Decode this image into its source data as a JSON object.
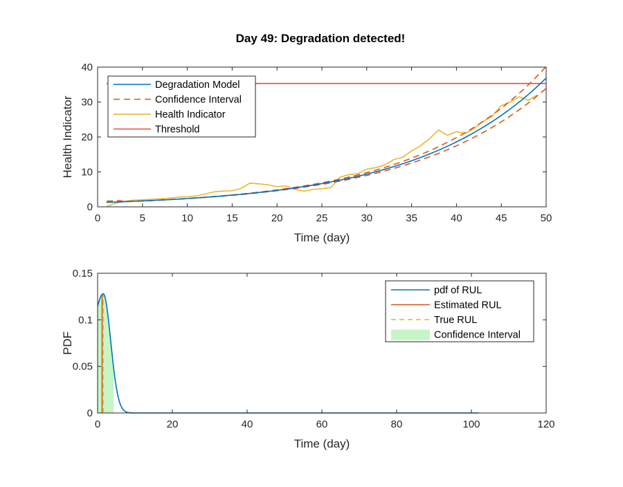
{
  "figure_title": "Day 49: Degradation detected!",
  "colors": {
    "model": "#0072bd",
    "ci": "#d95319",
    "health": "#edb120",
    "threshold": "#e74c3c",
    "pdf_fill": "#c6f5c6"
  },
  "chart_data": [
    {
      "type": "line",
      "title": "Day 49: Degradation detected!",
      "xlabel": "Time (day)",
      "ylabel": "Health Indicator",
      "xlim": [
        0,
        50
      ],
      "ylim": [
        0,
        40
      ],
      "xticks": [
        0,
        5,
        10,
        15,
        20,
        25,
        30,
        35,
        40,
        45,
        50
      ],
      "yticks": [
        0,
        10,
        20,
        30,
        40
      ],
      "legend_position": "top-left",
      "legend": [
        "Degradation Model",
        "Confidence Interval",
        "Health Indicator",
        "Threshold"
      ],
      "threshold": 35.3,
      "health_indicator": {
        "x": [
          1,
          2,
          3,
          4,
          5,
          6,
          7,
          8,
          9,
          10,
          11,
          12,
          13,
          14,
          15,
          16,
          17,
          18,
          19,
          20,
          21,
          22,
          23,
          24,
          25,
          26,
          27,
          28,
          29,
          30,
          31,
          32,
          33,
          34,
          35,
          36,
          37,
          38,
          39,
          40,
          41,
          42,
          43,
          44,
          45,
          46,
          47,
          48,
          49
        ],
        "y": [
          0.1,
          1.0,
          1.6,
          1.9,
          2.0,
          2.2,
          2.3,
          2.5,
          2.8,
          2.9,
          3.1,
          3.7,
          4.3,
          4.5,
          4.6,
          5.3,
          6.8,
          6.6,
          6.3,
          5.8,
          6.0,
          5.0,
          4.5,
          5.0,
          5.2,
          5.5,
          8.5,
          9.2,
          9.5,
          10.8,
          11.2,
          12.0,
          13.5,
          14.2,
          16.0,
          17.5,
          19.5,
          22.0,
          20.5,
          21.5,
          21.0,
          22.5,
          24.5,
          26.0,
          29.0,
          30.0,
          31.5,
          30.5,
          32.0
        ]
      },
      "model": {
        "a": 1.2,
        "b": 0.0685,
        "x_range": [
          1,
          50
        ]
      },
      "ci_upper_factor_end": 1.09,
      "ci_lower_factor_end": 0.92
    },
    {
      "type": "line",
      "xlabel": "Time (day)",
      "ylabel": "PDF",
      "xlim": [
        0,
        120
      ],
      "ylim": [
        0,
        0.15
      ],
      "xticks": [
        0,
        20,
        40,
        60,
        80,
        100,
        120
      ],
      "yticks": [
        0,
        0.05,
        0.1,
        0.15
      ],
      "ytick_labels": [
        "0",
        "0.05",
        "0.1",
        "0.15"
      ],
      "legend_position": "top-right",
      "legend": [
        "pdf of RUL",
        "Estimated RUL",
        "True RUL",
        "Confidence Interval"
      ],
      "pdf": {
        "peak_x": 1.5,
        "peak_y": 0.128,
        "start_y": 0.115,
        "sigma_right": 2.0,
        "x_end": 102
      },
      "estimated_rul": 1.2,
      "true_rul": 1.5,
      "confidence_interval": [
        0,
        4.3
      ]
    }
  ]
}
